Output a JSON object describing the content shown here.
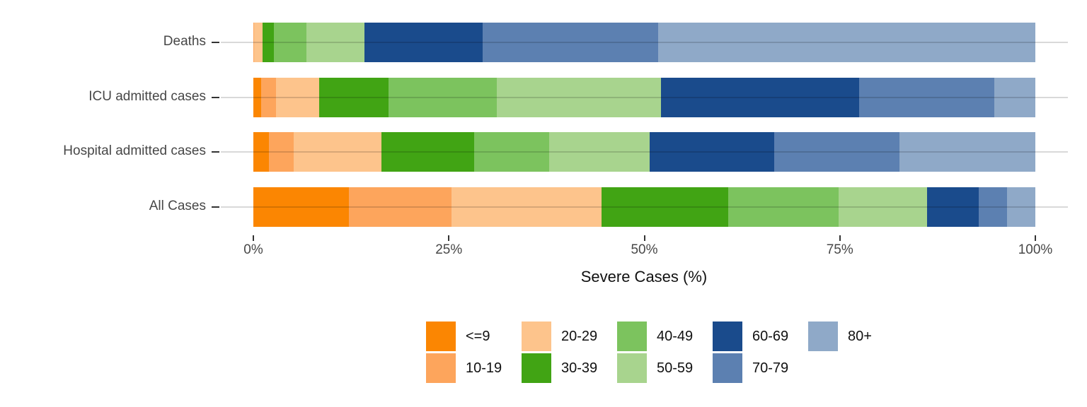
{
  "chart_data": {
    "type": "bar",
    "orientation": "horizontal",
    "stacked": true,
    "stack_total_percent": 100,
    "categories": [
      "Deaths",
      "ICU admitted cases",
      "Hospital admitted cases",
      "All Cases"
    ],
    "series": [
      {
        "name": "<=9",
        "color": "#FB8602",
        "values": [
          0.0,
          1.0,
          2.0,
          12.2
        ]
      },
      {
        "name": "10-19",
        "color": "#FDA55C",
        "values": [
          0.1,
          1.9,
          3.2,
          13.1
        ]
      },
      {
        "name": "20-29",
        "color": "#FDC48C",
        "values": [
          1.1,
          5.5,
          11.2,
          19.2
        ]
      },
      {
        "name": "30-39",
        "color": "#41A414",
        "values": [
          1.4,
          8.9,
          11.8,
          16.2
        ]
      },
      {
        "name": "40-49",
        "color": "#7CC35E",
        "values": [
          4.2,
          13.8,
          9.6,
          14.1
        ]
      },
      {
        "name": "50-59",
        "color": "#A8D48E",
        "values": [
          7.4,
          21.0,
          12.9,
          11.4
        ]
      },
      {
        "name": "60-69",
        "color": "#1A4B8C",
        "values": [
          15.1,
          25.4,
          15.9,
          6.6
        ]
      },
      {
        "name": "70-79",
        "color": "#5C80B1",
        "values": [
          22.5,
          17.3,
          16.0,
          3.6
        ]
      },
      {
        "name": "80+",
        "color": "#8FA9C8",
        "values": [
          48.2,
          5.2,
          17.4,
          3.6
        ]
      }
    ],
    "xlabel": "Severe Cases (%)",
    "x_ticks": [
      {
        "label": "0%",
        "value": 0
      },
      {
        "label": "25%",
        "value": 25
      },
      {
        "label": "50%",
        "value": 50
      },
      {
        "label": "75%",
        "value": 75
      },
      {
        "label": "100%",
        "value": 100
      }
    ],
    "xlim": [
      0,
      100
    ],
    "grid": "horizontal-category-lines",
    "legend_position": "bottom",
    "legend_rows": 2,
    "legend_order": "column-major"
  }
}
